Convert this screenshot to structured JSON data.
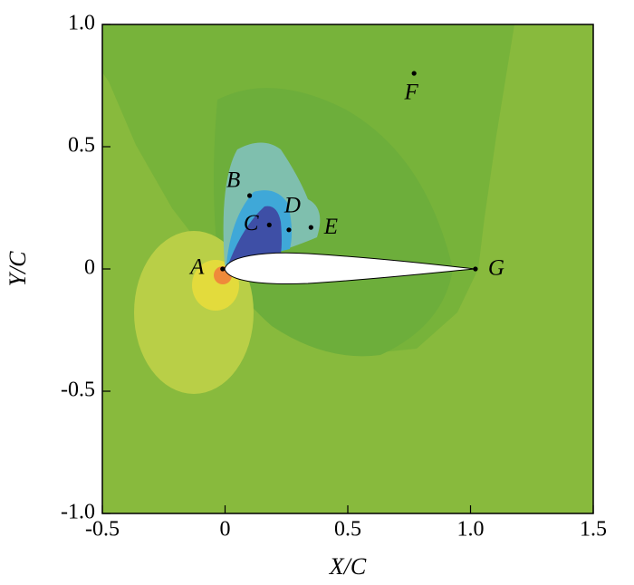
{
  "chart_data": {
    "type": "scatter",
    "x_label": "X/C",
    "y_label": "Y/C",
    "xlim": [
      -0.5,
      1.5
    ],
    "ylim": [
      -1.0,
      1.0
    ],
    "xticks": [
      -0.5,
      0,
      0.5,
      {
        "value": 1,
        "label": "1.0"
      },
      1.5
    ],
    "yticks": [
      {
        "value": 1,
        "label": "1.0"
      },
      0.5,
      0,
      -0.5,
      {
        "value": -1,
        "label": "-1.0"
      }
    ],
    "point_labels": [
      "A",
      "B",
      "C",
      "D",
      "E",
      "F",
      "G"
    ],
    "x": [
      -0.01,
      0.1,
      0.18,
      0.26,
      0.35,
      0.77,
      1.02
    ],
    "values": [
      0,
      0.3,
      0.18,
      0.16,
      0.17,
      0.8,
      0
    ],
    "color": "#000000"
  }
}
